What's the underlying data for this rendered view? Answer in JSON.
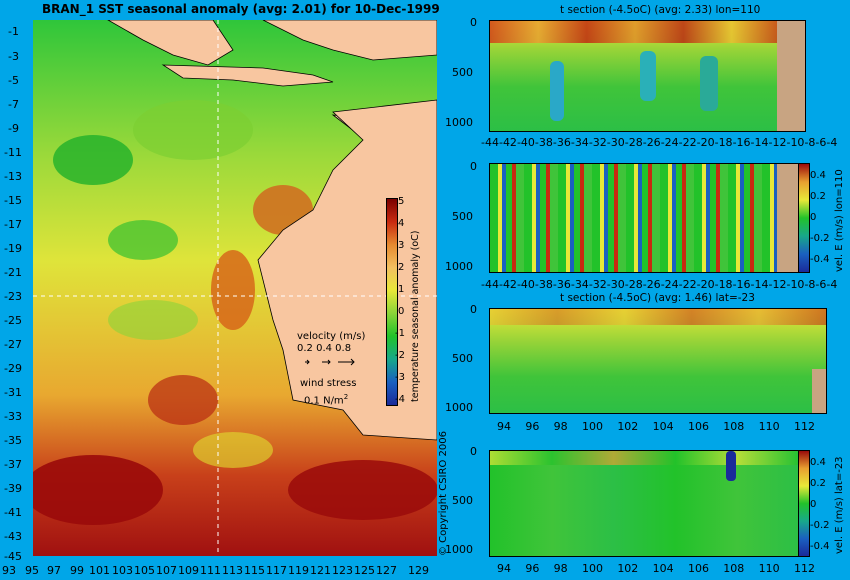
{
  "main_map": {
    "title": "BRAN_1  SST seasonal anomaly (avg: 2.01) for 10-Dec-1999",
    "lat_ticks": [
      "-1",
      "-3",
      "-5",
      "-7",
      "-9",
      "-11",
      "-13",
      "-15",
      "-17",
      "-19",
      "-21",
      "-23",
      "-25",
      "-27",
      "-29",
      "-31",
      "-33",
      "-35",
      "-37",
      "-39",
      "-41",
      "-43",
      "-45"
    ],
    "lon_ticks": [
      "93",
      "95",
      "97",
      "99",
      "101",
      "103",
      "105",
      "107",
      "109",
      "111",
      "113",
      "115",
      "117",
      "119",
      "121",
      "123",
      "125",
      "127",
      "129"
    ],
    "colorbar": {
      "ticks": [
        "5",
        "4",
        "3",
        "2",
        "1",
        "0",
        "-1",
        "-2",
        "-3",
        "-4"
      ],
      "label": "temperature seasonal anomaly (oC)"
    },
    "legend": {
      "velocity_label": "velocity (m/s)",
      "velocity_scale": "0.2 0.4 0.8",
      "wind_label": "wind stress",
      "wind_scale": "0.1 N/m",
      "wind_superscript": "2"
    },
    "copyright": "© Copyright CSIRO 2006"
  },
  "panels": [
    {
      "title": "t section (-4.5oC) (avg: 2.33) lon=110",
      "y_ticks": [
        "0",
        "500",
        "1000"
      ],
      "x_ticks": [
        "-44",
        "-42",
        "-40",
        "-38",
        "-36",
        "-34",
        "-32",
        "-30",
        "-28",
        "-26",
        "-24",
        "-22",
        "-20",
        "-18",
        "-16",
        "-14",
        "-12",
        "-10",
        "-8",
        "-6",
        "-4"
      ]
    },
    {
      "title": "",
      "y_ticks": [
        "0",
        "500",
        "1000"
      ],
      "x_ticks": [
        "-44",
        "-42",
        "-40",
        "-38",
        "-36",
        "-34",
        "-32",
        "-30",
        "-28",
        "-26",
        "-24",
        "-22",
        "-20",
        "-18",
        "-16",
        "-14",
        "-12",
        "-10",
        "-8",
        "-6",
        "-4"
      ],
      "colorbar_ticks": [
        "0.4",
        "0.2",
        "0",
        "-0.2",
        "-0.4"
      ],
      "colorbar_label": "vel. E (m/s) lon=110"
    },
    {
      "title": "t section (-4.5oC) (avg: 1.46) lat=-23",
      "y_ticks": [
        "0",
        "500",
        "1000"
      ],
      "x_ticks": [
        "94",
        "96",
        "98",
        "100",
        "102",
        "104",
        "106",
        "108",
        "110",
        "112"
      ]
    },
    {
      "title": "",
      "y_ticks": [
        "0",
        "500",
        "1000"
      ],
      "x_ticks": [
        "94",
        "96",
        "98",
        "100",
        "102",
        "104",
        "106",
        "108",
        "110",
        "112"
      ],
      "colorbar_ticks": [
        "0.4",
        "0.2",
        "0",
        "-0.2",
        "-0.4"
      ],
      "colorbar_label": "vel. E (m/s) lat=-23"
    }
  ],
  "colors": {
    "background": "#00a6e8",
    "land": "#f8c6a0",
    "land_section": "#c8a482",
    "anomaly_low": "#1a2a9a",
    "anomaly_zero": "#22c22a",
    "anomaly_high": "#9a0a0a"
  }
}
